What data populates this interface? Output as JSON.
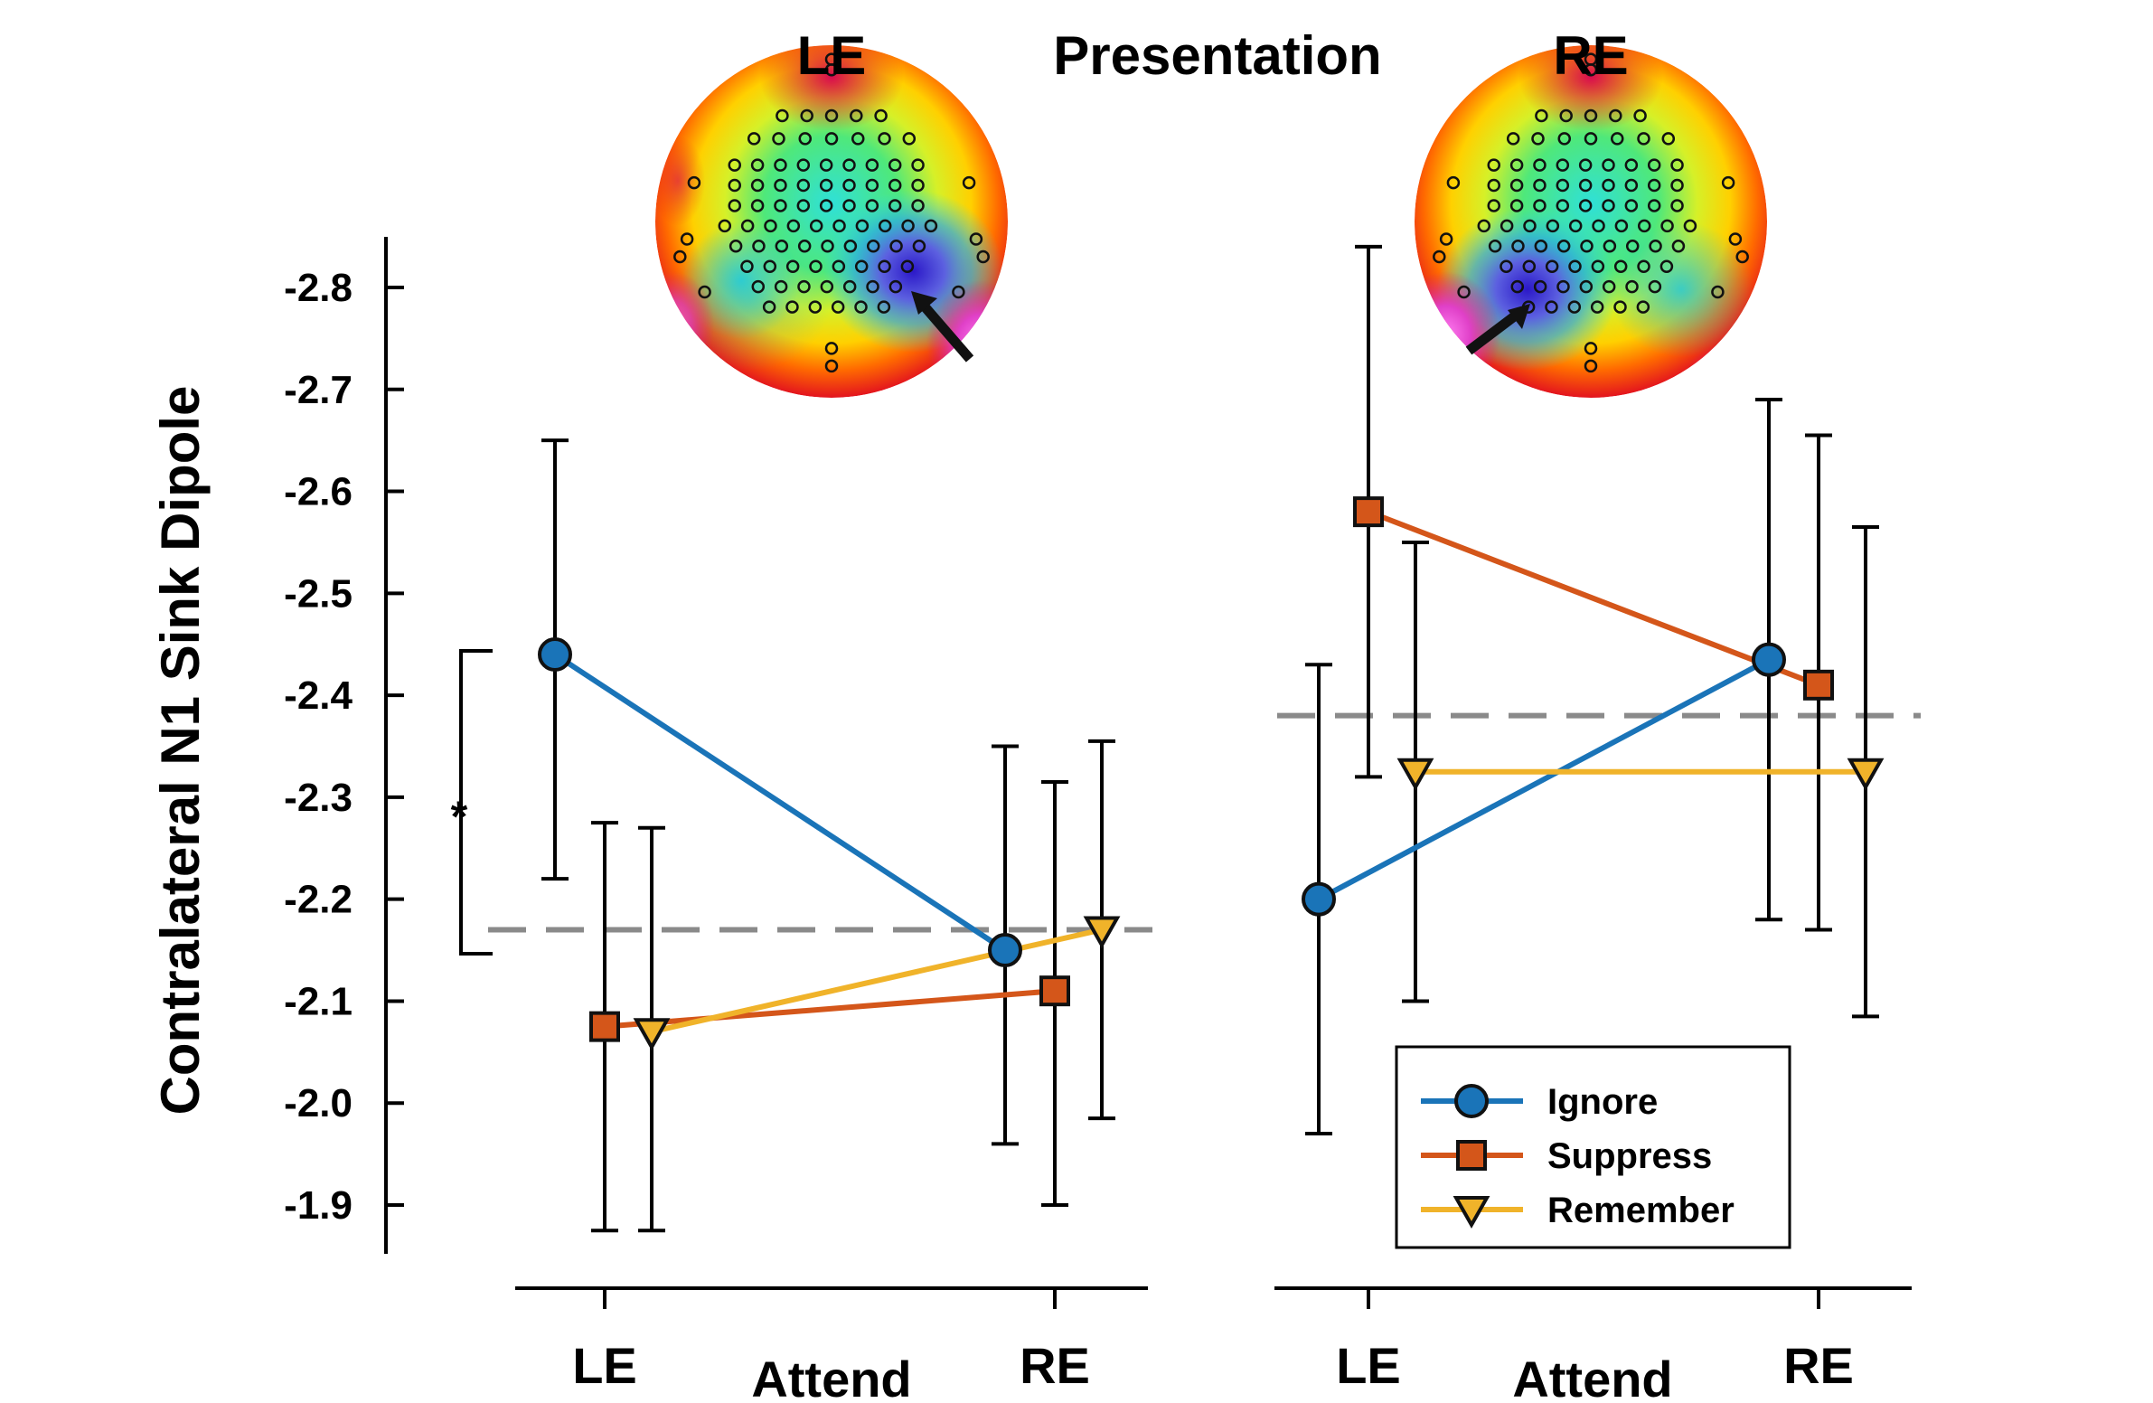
{
  "chart_data": {
    "type": "line",
    "title": "Presentation",
    "ylabel": "Contralateral N1 Sink Dipole",
    "ylim": [
      -1.86,
      -2.87
    ],
    "y_ticks": [
      "-1.9",
      "-2.0",
      "-2.1",
      "-2.2",
      "-2.3",
      "-2.4",
      "-2.5",
      "-2.6",
      "-2.7",
      "-2.8"
    ],
    "y_tick_values": [
      -1.9,
      -2.0,
      -2.1,
      -2.2,
      -2.3,
      -2.4,
      -2.5,
      -2.6,
      -2.7,
      -2.8
    ],
    "y_reversed": true,
    "reference_line_style": "dashed gray",
    "significance_marker": "*",
    "legend_position": "bottom-right",
    "legend": [
      {
        "name": "Ignore",
        "color": "#1a74b8",
        "marker": "circle"
      },
      {
        "name": "Suppress",
        "color": "#d4561a",
        "marker": "square"
      },
      {
        "name": "Remember",
        "color": "#f0b32a",
        "marker": "triangle-down"
      }
    ],
    "panels": [
      {
        "presentation_label": "LE",
        "xlabel": "Attend",
        "categories": [
          "LE",
          "RE"
        ],
        "reference_line": -2.17,
        "significance": {
          "from": -2.44,
          "to": -2.15,
          "label": "*"
        },
        "series": [
          {
            "name": "Ignore",
            "values": [
              -2.44,
              -2.15
            ],
            "error_low": [
              -2.22,
              -1.96
            ],
            "error_high": [
              -2.65,
              -2.35
            ]
          },
          {
            "name": "Suppress",
            "values": [
              -2.075,
              -2.11
            ],
            "error_low": [
              -1.875,
              -1.9
            ],
            "error_high": [
              -2.275,
              -2.315
            ]
          },
          {
            "name": "Remember",
            "values": [
              -2.07,
              -2.17
            ],
            "error_low": [
              -1.875,
              -1.985
            ],
            "error_high": [
              -2.27,
              -2.355
            ]
          }
        ]
      },
      {
        "presentation_label": "RE",
        "xlabel": "Attend",
        "categories": [
          "LE",
          "RE"
        ],
        "reference_line": -2.38,
        "series": [
          {
            "name": "Ignore",
            "values": [
              -2.2,
              -2.435
            ],
            "error_low": [
              -1.97,
              -2.18
            ],
            "error_high": [
              -2.43,
              -2.69
            ]
          },
          {
            "name": "Suppress",
            "values": [
              -2.58,
              -2.41
            ],
            "error_low": [
              -2.32,
              -2.17
            ],
            "error_high": [
              -2.84,
              -2.655
            ]
          },
          {
            "name": "Remember",
            "values": [
              -2.325,
              -2.325
            ],
            "error_low": [
              -2.1,
              -2.085
            ],
            "error_high": [
              -2.55,
              -2.565
            ]
          }
        ]
      }
    ]
  }
}
